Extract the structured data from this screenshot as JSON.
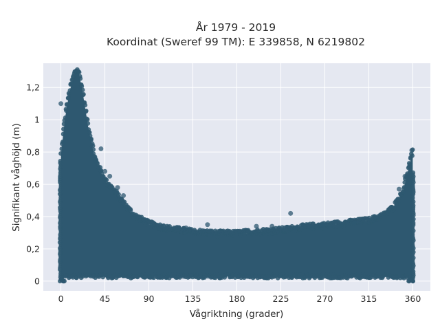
{
  "chart_data": {
    "type": "scatter",
    "title_lines": [
      "År 1979 - 2019",
      "Koordinat (Sweref 99 TM): E 339858, N 6219802"
    ],
    "xlabel": "Vågriktning (grader)",
    "ylabel": "Signifikant våghöjd (m)",
    "xlim": [
      -18,
      378
    ],
    "ylim": [
      -0.06,
      1.35
    ],
    "xticks": [
      0,
      45,
      90,
      135,
      180,
      225,
      270,
      315,
      360
    ],
    "xtick_labels": [
      "0",
      "45",
      "90",
      "135",
      "180",
      "225",
      "270",
      "315",
      "360"
    ],
    "yticks": [
      0,
      0.2,
      0.4,
      0.6,
      0.8,
      1.0,
      1.2
    ],
    "ytick_labels": [
      "0",
      "0,2",
      "0,4",
      "0,6",
      "0,8",
      "1",
      "1,2"
    ],
    "grid": true,
    "point_color": "#2e5870",
    "plot_bg": "#e5e8f1",
    "envelope": {
      "note": "upper envelope of the dense point cloud (direction in degrees, height in m)",
      "x": [
        0,
        5,
        10,
        15,
        18,
        22,
        28,
        35,
        45,
        55,
        65,
        75,
        90,
        110,
        135,
        160,
        180,
        200,
        225,
        250,
        270,
        285,
        300,
        315,
        330,
        340,
        350,
        355,
        360
      ],
      "y": [
        0.78,
        1.05,
        1.2,
        1.3,
        1.3,
        1.18,
        0.95,
        0.75,
        0.62,
        0.55,
        0.47,
        0.4,
        0.35,
        0.32,
        0.3,
        0.29,
        0.29,
        0.3,
        0.31,
        0.33,
        0.34,
        0.35,
        0.36,
        0.37,
        0.4,
        0.45,
        0.55,
        0.68,
        0.8
      ]
    },
    "outliers": [
      {
        "x": 0,
        "y": 1.1
      },
      {
        "x": 3,
        "y": 0.86
      },
      {
        "x": 31,
        "y": 0.88
      },
      {
        "x": 35,
        "y": 0.74
      },
      {
        "x": 41,
        "y": 0.82
      },
      {
        "x": 45,
        "y": 0.68
      },
      {
        "x": 50,
        "y": 0.65
      },
      {
        "x": 58,
        "y": 0.58
      },
      {
        "x": 64,
        "y": 0.53
      },
      {
        "x": 85,
        "y": 0.38
      },
      {
        "x": 105,
        "y": 0.34
      },
      {
        "x": 128,
        "y": 0.33
      },
      {
        "x": 150,
        "y": 0.35
      },
      {
        "x": 200,
        "y": 0.34
      },
      {
        "x": 216,
        "y": 0.34
      },
      {
        "x": 235,
        "y": 0.42
      },
      {
        "x": 240,
        "y": 0.33
      },
      {
        "x": 268,
        "y": 0.35
      },
      {
        "x": 300,
        "y": 0.36
      },
      {
        "x": 335,
        "y": 0.44
      },
      {
        "x": 346,
        "y": 0.57
      },
      {
        "x": 352,
        "y": 0.65
      },
      {
        "x": 359,
        "y": 0.81
      }
    ]
  }
}
